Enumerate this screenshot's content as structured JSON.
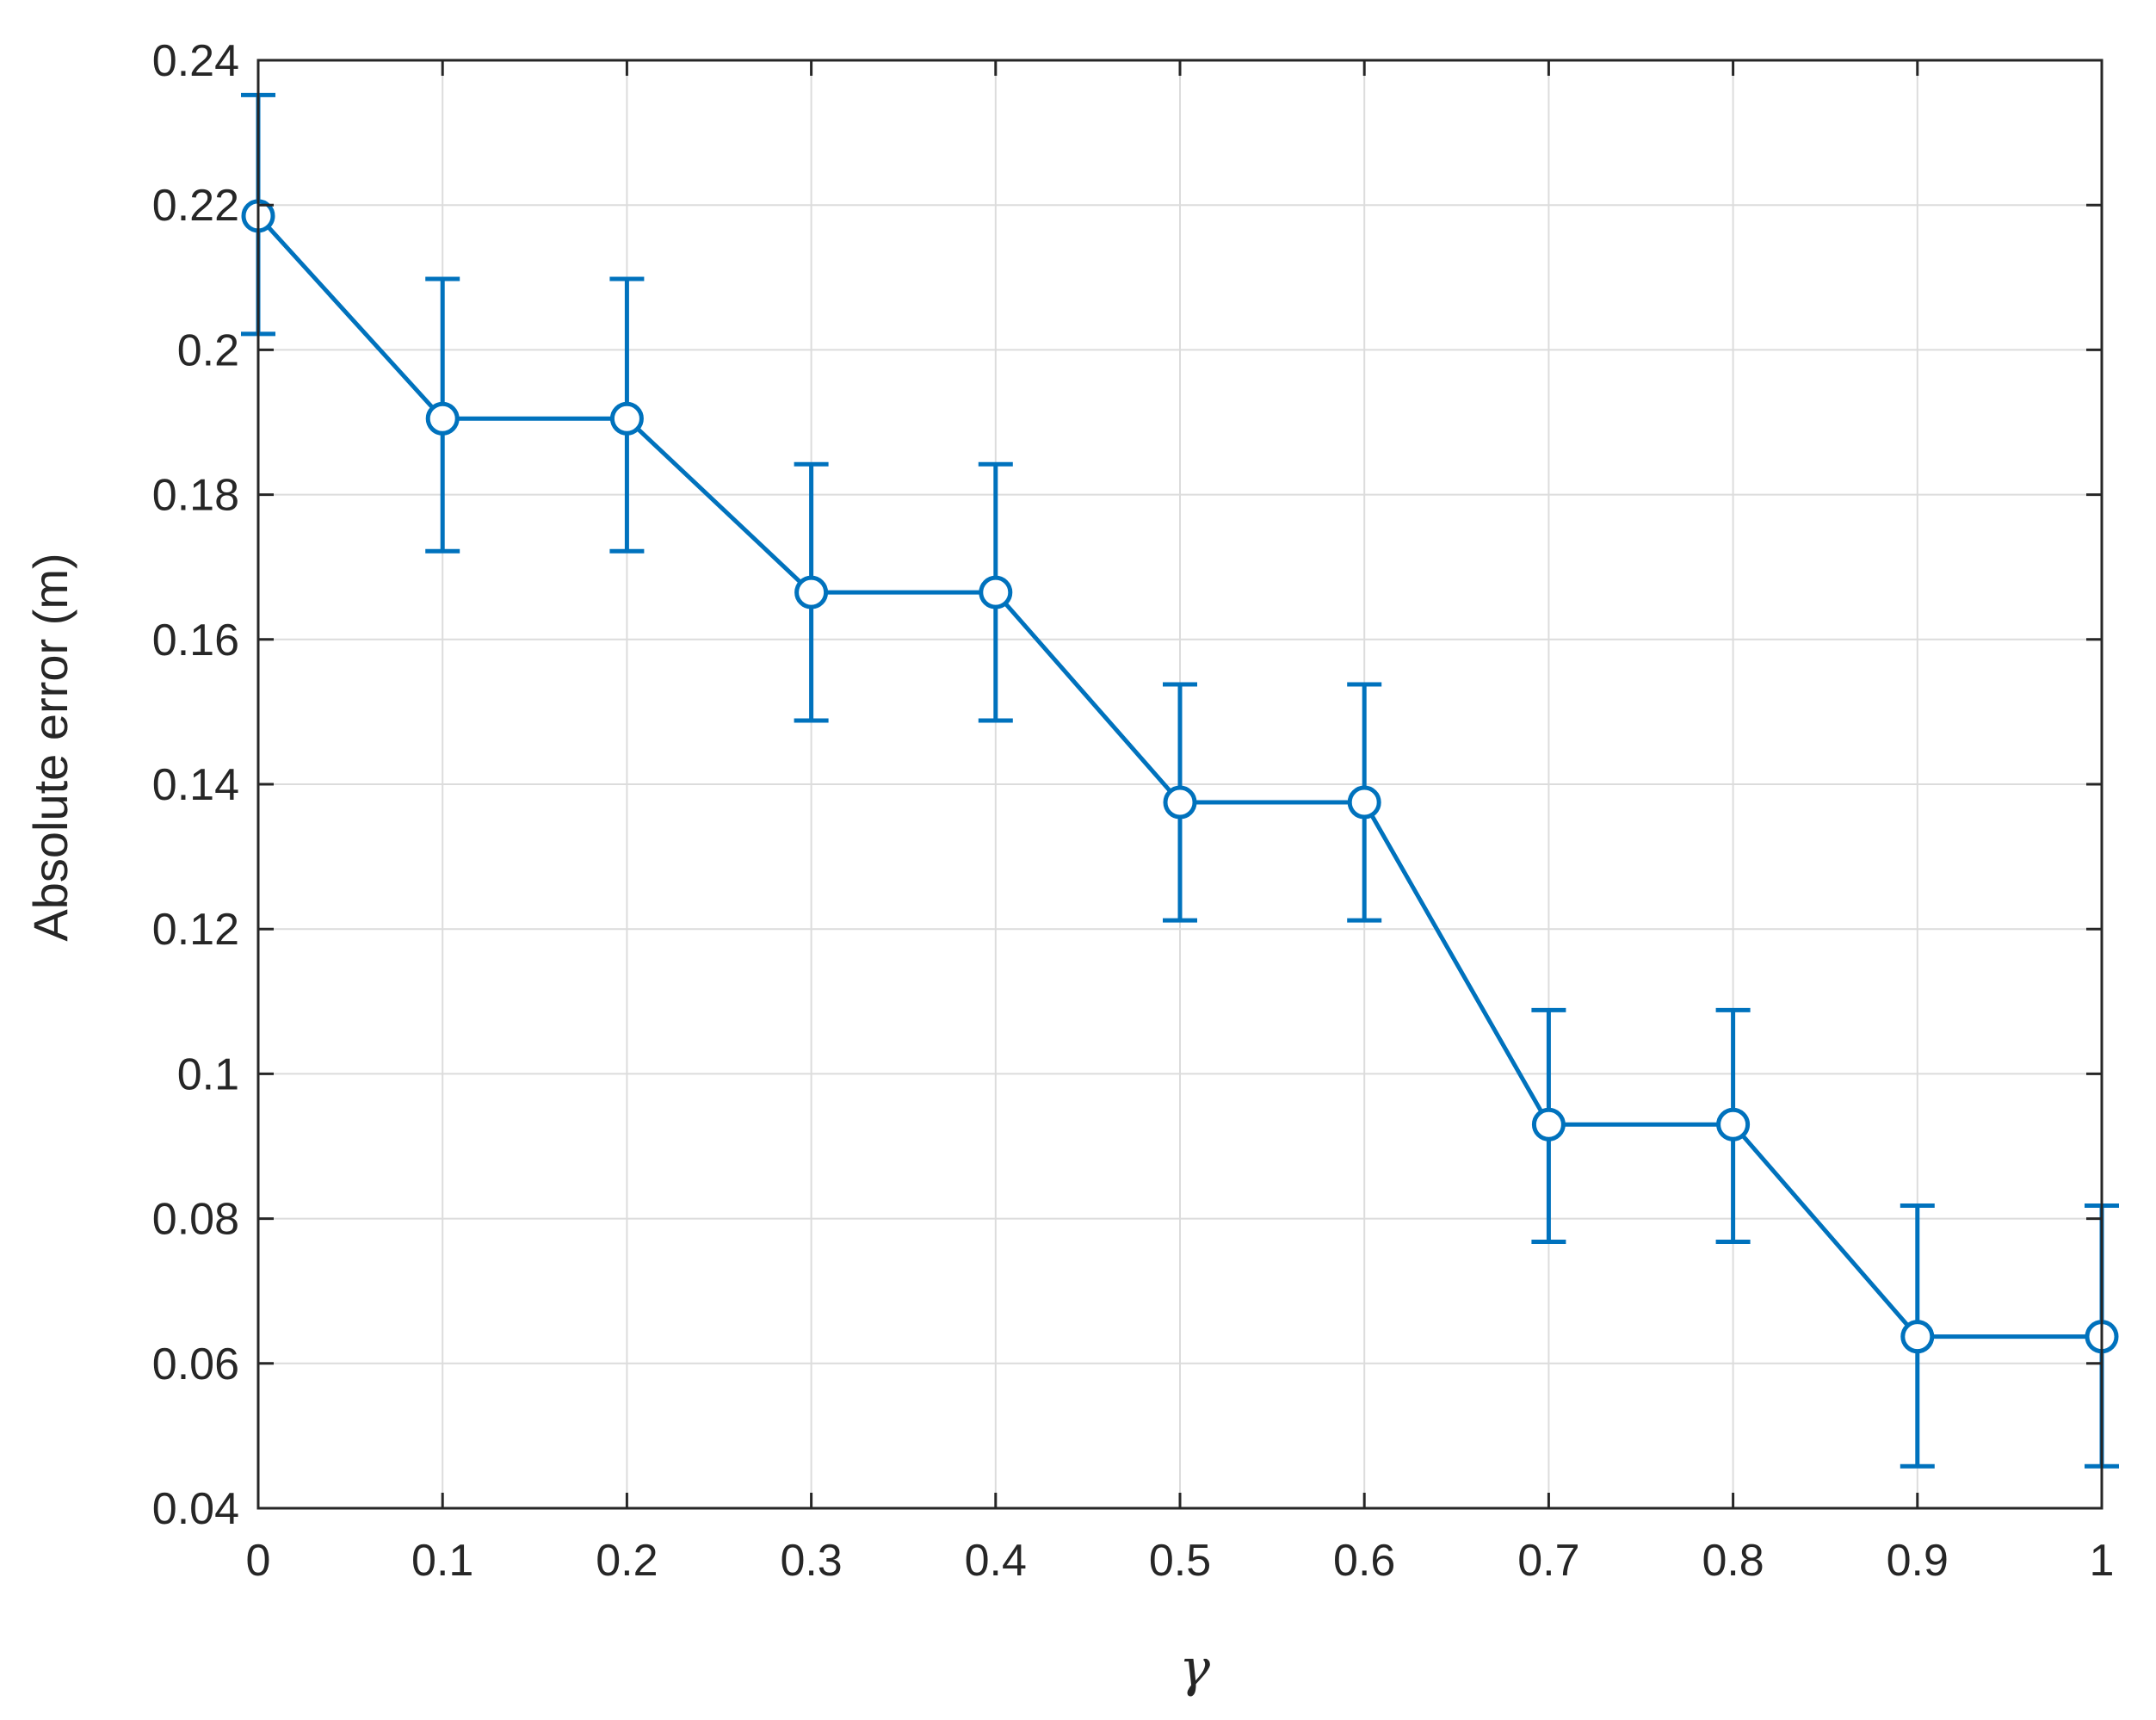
{
  "chart_data": {
    "type": "line",
    "title": "",
    "xlabel": "γ",
    "ylabel": "Absolute error (m)",
    "xlim": [
      0,
      1
    ],
    "ylim": [
      0.04,
      0.24
    ],
    "grid": true,
    "x_ticks": [
      "0",
      "0.1",
      "0.2",
      "0.3",
      "0.4",
      "0.5",
      "0.6",
      "0.7",
      "0.8",
      "0.9",
      "1"
    ],
    "y_ticks": [
      "0.04",
      "0.06",
      "0.08",
      "0.1",
      "0.12",
      "0.14",
      "0.16",
      "0.18",
      "0.2",
      "0.22",
      "0.24"
    ],
    "colors": {
      "series": "#0072BD",
      "grid": "#dcdcdc",
      "axis": "#262626"
    },
    "series": [
      {
        "marker": "circle-open",
        "x": [
          0,
          0.1,
          0.2,
          0.3,
          0.4,
          0.5,
          0.6,
          0.7,
          0.8,
          0.9,
          1.0
        ],
        "y": [
          0.2185,
          0.1905,
          0.1905,
          0.1665,
          0.1665,
          0.1375,
          0.1375,
          0.093,
          0.093,
          0.0637,
          0.0637
        ],
        "error_low": [
          0.2022,
          0.1722,
          0.1722,
          0.1488,
          0.1488,
          0.1212,
          0.1212,
          0.0768,
          0.0768,
          0.0458,
          0.0458
        ],
        "error_high": [
          0.2352,
          0.2098,
          0.2098,
          0.1842,
          0.1842,
          0.1538,
          0.1538,
          0.1088,
          0.1088,
          0.0818,
          0.0818
        ]
      }
    ]
  }
}
